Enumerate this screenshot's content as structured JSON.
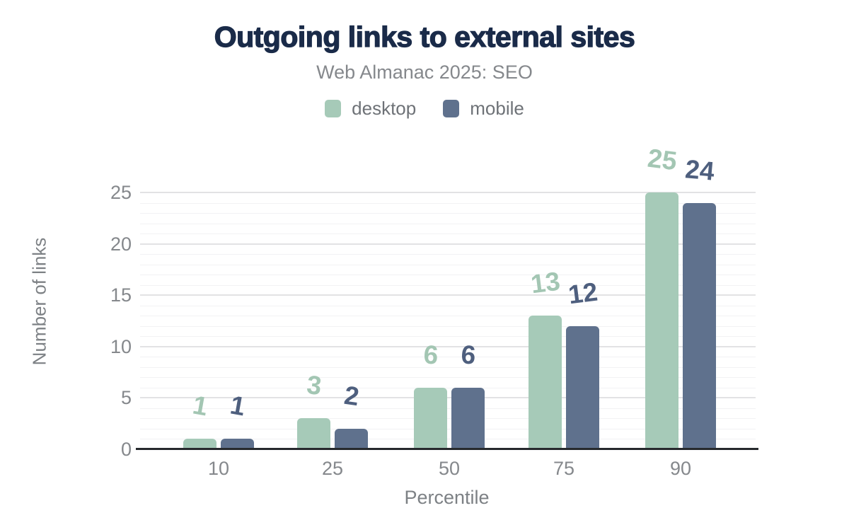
{
  "figure": {
    "title": "Outgoing links to external sites",
    "subtitle": "Web Almanac 2025: SEO",
    "xlabel": "Percentile",
    "ylabel": "Number of links"
  },
  "legend": {
    "items": [
      {
        "label": "desktop",
        "color": "#a6cab8"
      },
      {
        "label": "mobile",
        "color": "#5f718d"
      }
    ]
  },
  "chart_data": {
    "type": "bar",
    "title": "Outgoing links to external sites",
    "subtitle": "Web Almanac 2025: SEO",
    "categories": [
      "10",
      "25",
      "50",
      "75",
      "90"
    ],
    "series": [
      {
        "name": "desktop",
        "color": "#a6cab8",
        "label_color": "#a3c6b3",
        "values": [
          1,
          3,
          6,
          13,
          25
        ],
        "label_tilts_deg": [
          10,
          6,
          4,
          -7,
          7
        ]
      },
      {
        "name": "mobile",
        "color": "#5f718d",
        "label_color": "#4e5f7e",
        "values": [
          1,
          2,
          6,
          12,
          24
        ],
        "label_tilts_deg": [
          10,
          8,
          4,
          -7,
          5
        ]
      }
    ],
    "xlabel": "Percentile",
    "ylabel": "Number of links",
    "ylim": [
      0,
      25
    ],
    "y_ticks": [
      0,
      5,
      10,
      15,
      20,
      25
    ],
    "y_minor_step": 1,
    "y_major_step": 5,
    "grid": true,
    "legend_position": "top",
    "value_labels": true
  },
  "colors": {
    "title": "#1a2b49",
    "subtitle": "#85888c",
    "legend_text": "#6e7277",
    "tick_text": "#85888c",
    "axis_title_text": "#7d8185",
    "axis_line": "#26292d",
    "grid_major": "#e2e2e4",
    "grid_minor": "#f2f2f4",
    "background": "#ffffff"
  }
}
